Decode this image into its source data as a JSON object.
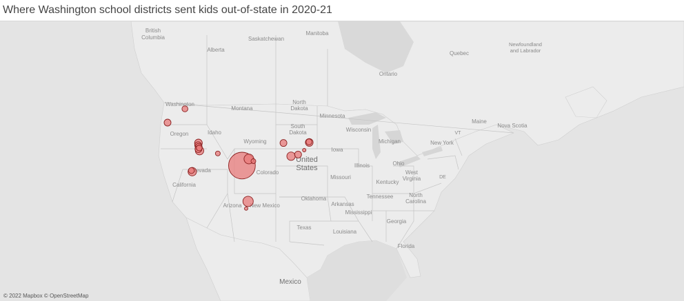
{
  "title": "Where Washington school districts sent kids out-of-state in 2020-21",
  "attribution": "© 2022 Mapbox © OpenStreetMap",
  "colors": {
    "land": "#e9e9e9",
    "water": "#d4d4d4",
    "border": "#bdbdbd",
    "bubble_fill": "#e87b7b",
    "bubble_stroke": "#8a2020"
  },
  "labels": {
    "british_columbia_1": "British",
    "british_columbia_2": "Columbia",
    "alberta": "Alberta",
    "saskatchewan": "Saskatchewan",
    "manitoba": "Manitoba",
    "ontario": "Ontario",
    "quebec": "Quebec",
    "newfoundland_1": "Newfoundland",
    "newfoundland_2": "and Labrador",
    "washington": "Washington",
    "oregon": "Oregon",
    "idaho": "Idaho",
    "montana": "Montana",
    "wyoming": "Wyoming",
    "nevada": "Nevada",
    "california": "California",
    "utah": "Utah",
    "colorado": "Colorado",
    "arizona": "Arizona",
    "new_mexico": "New Mexico",
    "north_dakota_1": "North",
    "north_dakota_2": "Dakota",
    "south_dakota_1": "South",
    "south_dakota_2": "Dakota",
    "minnesota": "Minnesota",
    "wisconsin": "Wisconsin",
    "iowa": "Iowa",
    "illinois": "Illinois",
    "michigan": "Michigan",
    "ohio": "Ohio",
    "new_york": "New York",
    "vt": "VT",
    "maine": "Maine",
    "nova_scotia": "Nova Scotia",
    "united_1": "United",
    "united_2": "States",
    "missouri": "Missouri",
    "kentucky": "Kentucky",
    "west_virginia_1": "West",
    "west_virginia_2": "Virginia",
    "de": "DE",
    "oklahoma": "Oklahoma",
    "arkansas": "Arkansas",
    "tennessee": "Tennessee",
    "north_carolina_1": "North",
    "north_carolina_2": "Carolina",
    "mississippi": "Mississippi",
    "georgia": "Georgia",
    "texas": "Texas",
    "louisiana": "Louisiana",
    "florida": "Florida",
    "mexico": "Mexico"
  },
  "bubbles": [
    {
      "name": "oregon-coast",
      "lon": -123.0,
      "lat": 45.2,
      "size": 4
    },
    {
      "name": "idaho-north",
      "lon": -116.8,
      "lat": 47.7,
      "size": 3
    },
    {
      "name": "utah-1",
      "lon": -112.0,
      "lat": 41.5,
      "size": 5
    },
    {
      "name": "utah-2",
      "lon": -112.1,
      "lat": 41.1,
      "size": 4
    },
    {
      "name": "utah-3",
      "lon": -111.9,
      "lat": 40.8,
      "size": 4
    },
    {
      "name": "utah-4",
      "lon": -112.0,
      "lat": 40.4,
      "size": 4
    },
    {
      "name": "utah-5",
      "lon": -111.6,
      "lat": 40.1,
      "size": 6
    },
    {
      "name": "utah-6",
      "lon": -111.7,
      "lat": 40.6,
      "size": 3
    },
    {
      "name": "colorado",
      "lon": -105.1,
      "lat": 39.6,
      "size": 2
    },
    {
      "name": "nevada-1",
      "lon": -114.2,
      "lat": 36.3,
      "size": 6
    },
    {
      "name": "nevada-2",
      "lon": -114.5,
      "lat": 36.5,
      "size": 3
    },
    {
      "name": "kansas",
      "lon": -96.5,
      "lat": 37.4,
      "size": 60
    },
    {
      "name": "missouri-1",
      "lon": -94.0,
      "lat": 38.6,
      "size": 8
    },
    {
      "name": "missouri-2",
      "lon": -92.4,
      "lat": 38.2,
      "size": 2
    },
    {
      "name": "texas-1",
      "lon": -94.3,
      "lat": 30.9,
      "size": 9
    },
    {
      "name": "texas-2",
      "lon": -95.0,
      "lat": 29.6,
      "size": 1
    },
    {
      "name": "ohio",
      "lon": -81.7,
      "lat": 41.5,
      "size": 4
    },
    {
      "name": "west-virginia",
      "lon": -79.0,
      "lat": 39.1,
      "size": 6
    },
    {
      "name": "maryland",
      "lon": -76.5,
      "lat": 39.4,
      "size": 4
    },
    {
      "name": "new-jersey",
      "lon": -74.3,
      "lat": 40.2,
      "size": 1
    },
    {
      "name": "connecticut-1",
      "lon": -72.5,
      "lat": 41.6,
      "size": 5
    },
    {
      "name": "connecticut-2",
      "lon": -72.6,
      "lat": 41.7,
      "size": 3
    }
  ]
}
